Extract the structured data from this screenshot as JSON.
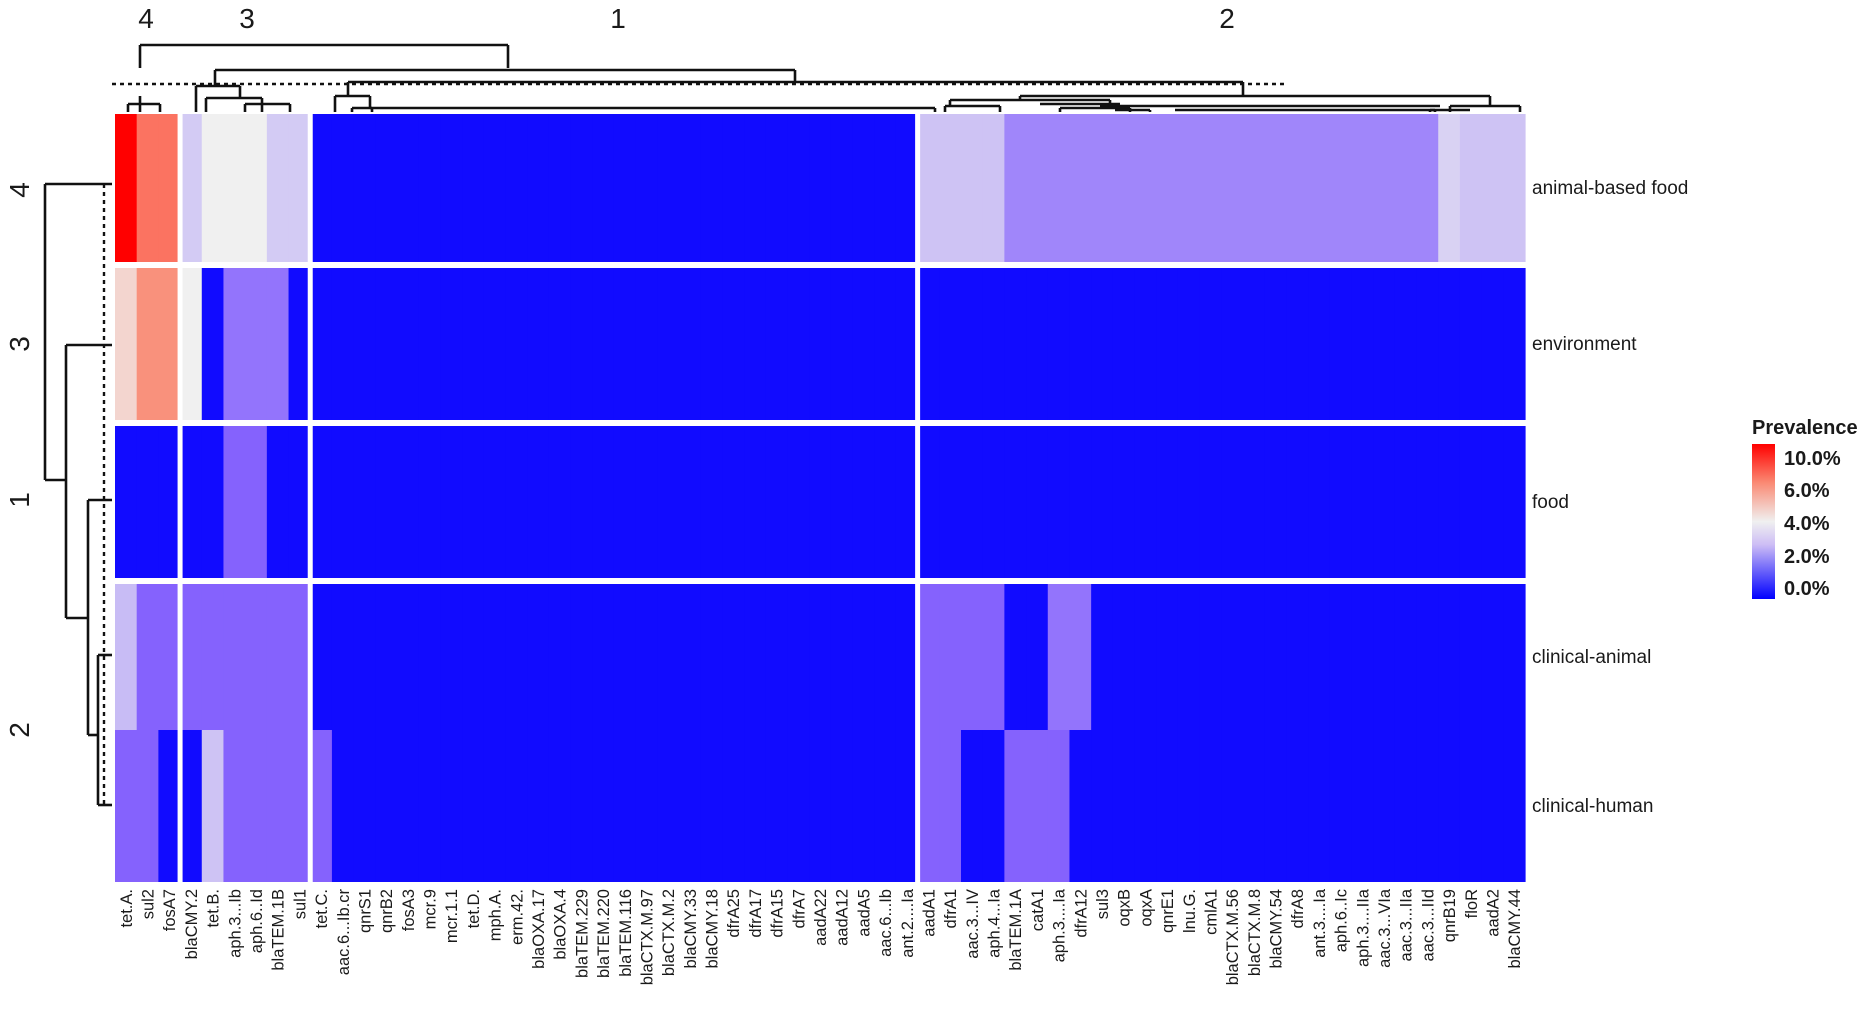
{
  "chart_data": {
    "type": "heatmap",
    "title": "",
    "legend": {
      "title": "Prevalence",
      "ticks": [
        "10.0%",
        "6.0%",
        "4.0%",
        "2.0%",
        "0.0%"
      ],
      "placement": "right",
      "colors": {
        "low": "#0000ff",
        "mid": "#f0f0f0",
        "high": "#ff0000"
      }
    },
    "rows": [
      "animal-based food",
      "environment",
      "food",
      "clinical-animal",
      "clinical-human"
    ],
    "row_cluster_labels": [
      "4",
      "3",
      "1",
      "2"
    ],
    "column_cluster_labels": [
      "4",
      "3",
      "1",
      "2"
    ],
    "columns": [
      "tet.A.",
      "sul2",
      "fosA7",
      "blaCMY.2",
      "tet.B.",
      "aph.3...Ib",
      "aph.6..Id",
      "blaTEM.1B",
      "sul1",
      "tet.C.",
      "aac.6...Ib.cr",
      "qnrS1",
      "qnrB2",
      "fosA3",
      "mcr.9",
      "mcr.1.1",
      "tet.D.",
      "mph.A.",
      "erm.42.",
      "blaOXA.17",
      "blaOXA.4",
      "blaTEM.229",
      "blaTEM.220",
      "blaTEM.116",
      "blaCTX.M.97",
      "blaCTX.M.2",
      "blaCMY.33",
      "blaCMY.18",
      "dfrA25",
      "dfrA17",
      "dfrA15",
      "dfrA7",
      "aadA22",
      "aadA12",
      "aadA5",
      "aac.6...Ib",
      "ant.2....Ia",
      "aadA1",
      "dfrA1",
      "aac.3...IV",
      "aph.4...Ia",
      "blaTEM.1A",
      "catA1",
      "aph.3....Ia",
      "dfrA12",
      "sul3",
      "oqxB",
      "oqxA",
      "qnrE1",
      "lnu.G.",
      "cmlA1",
      "blaCTX.M.56",
      "blaCTX.M.8",
      "blaCMY.54",
      "dfrA8",
      "ant.3....Ia",
      "aph.6..Ic",
      "aph.3....IIa",
      "aac.3...VIa",
      "aac.3...IIa",
      "aac.3...IId",
      "qnrB19",
      "floR",
      "aadA2",
      "blaCMY.44"
    ],
    "values": [
      [
        10.0,
        7.5,
        7.5,
        3.0,
        4.0,
        4.0,
        4.0,
        3.0,
        3.0,
        0.2,
        0.2,
        0.2,
        0.2,
        0.2,
        0.2,
        0.2,
        0.2,
        0.2,
        0.2,
        0.2,
        0.2,
        0.2,
        0.2,
        0.2,
        0.2,
        0.2,
        0.2,
        0.2,
        0.2,
        0.2,
        0.2,
        0.2,
        0.2,
        0.2,
        0.2,
        0.2,
        0.2,
        2.8,
        2.8,
        2.8,
        2.8,
        2.0,
        2.0,
        2.0,
        2.0,
        2.0,
        2.0,
        2.0,
        2.0,
        2.0,
        2.0,
        2.0,
        2.0,
        2.0,
        2.0,
        2.0,
        2.0,
        2.0,
        2.0,
        2.0,
        2.0,
        3.2,
        2.8,
        2.8,
        2.8
      ],
      [
        4.8,
        6.8,
        6.8,
        4.0,
        0.2,
        1.8,
        1.8,
        1.8,
        0.2,
        0.2,
        0.2,
        0.2,
        0.2,
        0.2,
        0.2,
        0.2,
        0.2,
        0.2,
        0.2,
        0.2,
        0.2,
        0.2,
        0.2,
        0.2,
        0.2,
        0.2,
        0.2,
        0.2,
        0.2,
        0.2,
        0.2,
        0.2,
        0.2,
        0.2,
        0.2,
        0.2,
        0.2,
        0.2,
        0.2,
        0.2,
        0.2,
        0.2,
        0.2,
        0.2,
        0.2,
        0.2,
        0.2,
        0.2,
        0.2,
        0.2,
        0.2,
        0.2,
        0.2,
        0.2,
        0.2,
        0.2,
        0.2,
        0.2,
        0.2,
        0.2,
        0.2,
        0.2,
        0.2,
        0.2,
        0.2
      ],
      [
        0.2,
        0.2,
        0.2,
        0.2,
        0.2,
        1.6,
        1.6,
        0.2,
        0.2,
        0.2,
        0.2,
        0.2,
        0.2,
        0.2,
        0.2,
        0.2,
        0.2,
        0.2,
        0.2,
        0.2,
        0.2,
        0.2,
        0.2,
        0.2,
        0.2,
        0.2,
        0.2,
        0.2,
        0.2,
        0.2,
        0.2,
        0.2,
        0.2,
        0.2,
        0.2,
        0.2,
        0.2,
        0.2,
        0.2,
        0.2,
        0.2,
        0.2,
        0.2,
        0.2,
        0.2,
        0.2,
        0.2,
        0.2,
        0.2,
        0.2,
        0.2,
        0.2,
        0.2,
        0.2,
        0.2,
        0.2,
        0.2,
        0.2,
        0.2,
        0.2,
        0.2,
        0.2,
        0.2,
        0.2,
        0.2
      ],
      [
        2.6,
        1.6,
        1.6,
        1.6,
        1.6,
        1.6,
        1.6,
        1.6,
        1.6,
        0.2,
        0.2,
        0.2,
        0.2,
        0.2,
        0.2,
        0.2,
        0.2,
        0.2,
        0.2,
        0.2,
        0.2,
        0.2,
        0.2,
        0.2,
        0.2,
        0.2,
        0.2,
        0.2,
        0.2,
        0.2,
        0.2,
        0.2,
        0.2,
        0.2,
        0.2,
        0.2,
        0.2,
        1.6,
        1.6,
        1.6,
        1.6,
        0.2,
        0.2,
        1.8,
        1.8,
        0.2,
        0.2,
        0.2,
        0.2,
        0.2,
        0.2,
        0.2,
        0.2,
        0.2,
        0.2,
        0.2,
        0.2,
        0.2,
        0.2,
        0.2,
        0.2,
        0.2,
        0.2,
        0.2,
        0.2
      ],
      [
        1.6,
        1.6,
        0.2,
        0.2,
        2.8,
        1.6,
        1.6,
        1.6,
        1.6,
        1.6,
        0.2,
        0.2,
        0.2,
        0.2,
        0.2,
        0.2,
        0.2,
        0.2,
        0.2,
        0.2,
        0.2,
        0.2,
        0.2,
        0.2,
        0.2,
        0.2,
        0.2,
        0.2,
        0.2,
        0.2,
        0.2,
        0.2,
        0.2,
        0.2,
        0.2,
        0.2,
        0.2,
        1.6,
        1.6,
        0.2,
        0.2,
        1.6,
        1.6,
        1.6,
        0.2,
        0.2,
        0.2,
        0.2,
        0.2,
        0.2,
        0.2,
        0.2,
        0.2,
        0.2,
        0.2,
        0.2,
        0.2,
        0.2,
        0.2,
        0.2,
        0.2,
        0.2,
        0.2,
        0.2,
        0.2
      ]
    ]
  }
}
